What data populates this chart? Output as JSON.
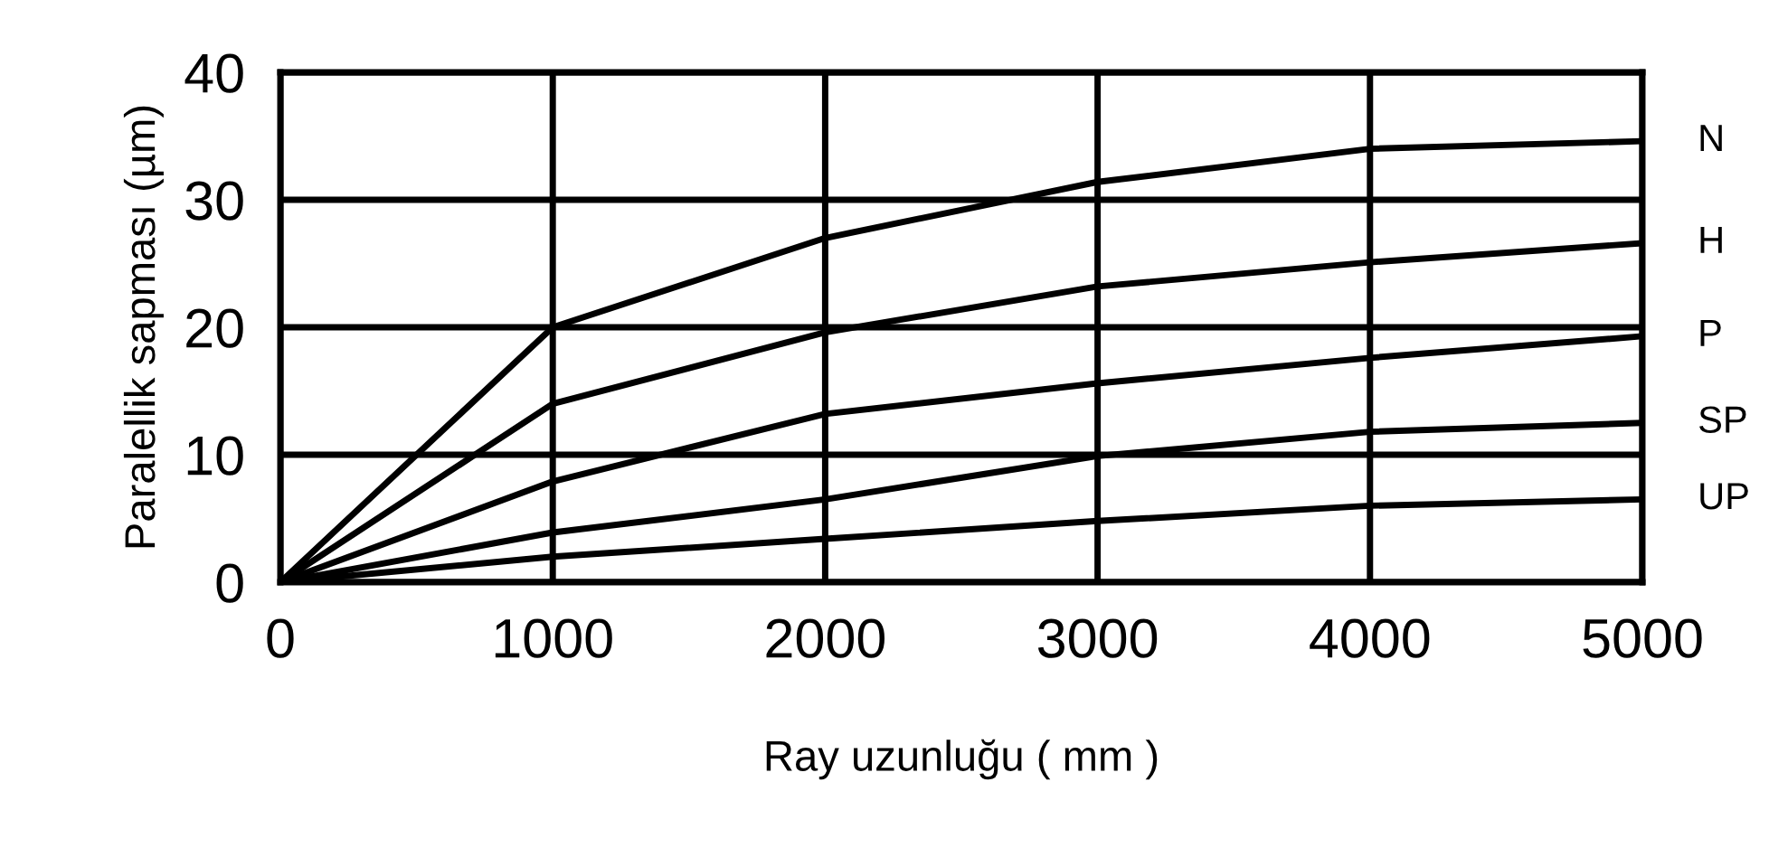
{
  "chart_data": {
    "type": "line",
    "xlabel": "Ray uzunluğu ( mm )",
    "ylabel": "Paralellik sapması (µm)",
    "x": [
      0,
      1000,
      2000,
      3000,
      4000,
      5000
    ],
    "series": [
      {
        "name": "N",
        "color": "#000000",
        "values": [
          0,
          20,
          27,
          31.4,
          34,
          34.6
        ]
      },
      {
        "name": "H",
        "color": "#000000",
        "values": [
          0,
          14,
          19.6,
          23.2,
          25.1,
          26.6
        ]
      },
      {
        "name": "P",
        "color": "#000000",
        "values": [
          0,
          7.9,
          13.2,
          15.6,
          17.6,
          19.3
        ]
      },
      {
        "name": "SP",
        "color": "#000000",
        "values": [
          0,
          3.9,
          6.5,
          9.9,
          11.8,
          12.5
        ]
      },
      {
        "name": "UP",
        "color": "#000000",
        "values": [
          0,
          2,
          3.4,
          4.8,
          6,
          6.5
        ]
      }
    ],
    "xlim": [
      0,
      5000
    ],
    "ylim": [
      0,
      40
    ],
    "xticks": [
      0,
      1000,
      2000,
      3000,
      4000,
      5000
    ],
    "yticks": [
      0,
      10,
      20,
      30,
      40
    ],
    "grid": true,
    "legend": false,
    "marker": "none",
    "line_style": "solid"
  }
}
